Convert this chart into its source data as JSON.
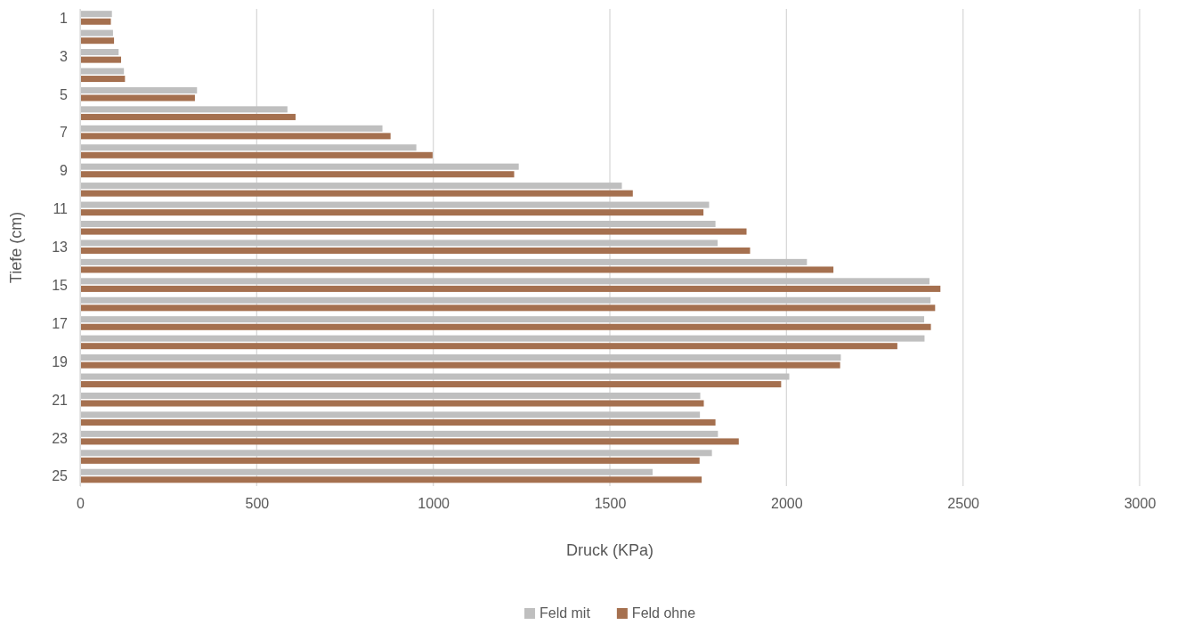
{
  "chart_data": {
    "type": "bar",
    "orientation": "horizontal",
    "xlabel": "Druck (KPa)",
    "ylabel": "Tiefe (cm)",
    "categories": [
      "1",
      null,
      "3",
      null,
      "5",
      null,
      "7",
      null,
      "9",
      null,
      "11",
      null,
      "13",
      null,
      "15",
      null,
      "17",
      null,
      "19",
      null,
      "21",
      null,
      "23",
      null,
      "25"
    ],
    "series": [
      {
        "name": "Feld mit",
        "color": "#bfbfbf",
        "values": [
          90,
          93,
          109,
          124,
          331,
          587,
          856,
          952,
          1242,
          1534,
          1781,
          1799,
          1805,
          2058,
          2405,
          2408,
          2390,
          2391,
          2154,
          2008,
          1756,
          1755,
          1806,
          1789,
          1621
        ]
      },
      {
        "name": "Feld ohne",
        "color": "#a5704f",
        "values": [
          87,
          96,
          116,
          127,
          325,
          610,
          879,
          998,
          1229,
          1565,
          1765,
          1887,
          1897,
          2133,
          2436,
          2421,
          2409,
          2314,
          2152,
          1985,
          1766,
          1799,
          1865,
          1754,
          1760
        ]
      }
    ],
    "xlim": [
      0,
      3000
    ],
    "xticks": [
      0,
      500,
      1000,
      1500,
      2000,
      2500,
      3000
    ],
    "grid": "x",
    "legend": "bottom"
  }
}
